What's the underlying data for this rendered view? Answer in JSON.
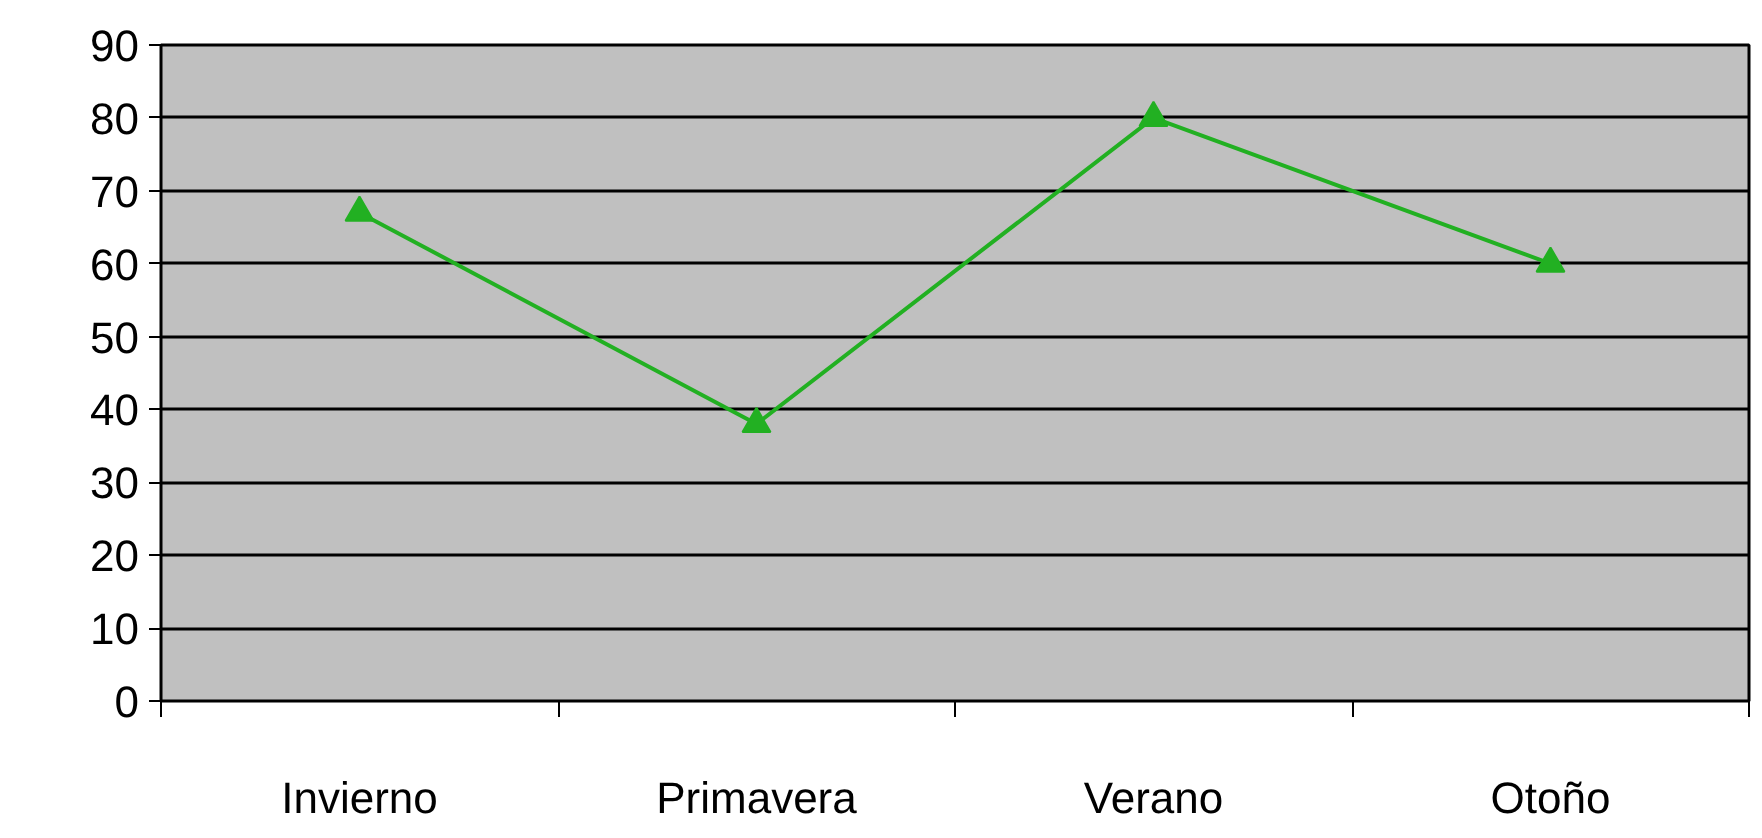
{
  "chart_data": {
    "type": "line",
    "categories": [
      "Invierno",
      "Primavera",
      "Verano",
      "Otoño"
    ],
    "series": [
      {
        "color": "#22b022",
        "values": [
          67,
          38,
          80,
          60
        ]
      }
    ],
    "ylim": [
      0,
      90
    ],
    "yticks": [
      0,
      10,
      20,
      30,
      40,
      50,
      60,
      70,
      80,
      90
    ],
    "grid": "y",
    "marker": "triangle",
    "line_style": "solid"
  }
}
